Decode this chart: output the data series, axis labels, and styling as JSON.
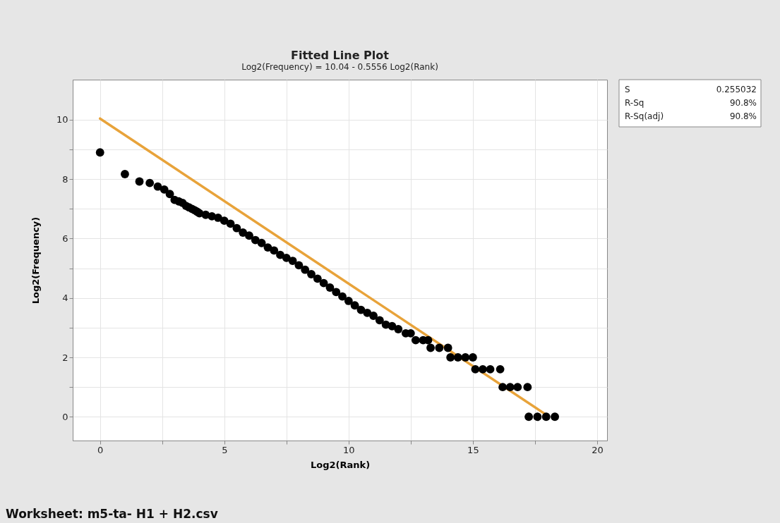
{
  "chart_data": {
    "type": "scatter",
    "title": "Fitted Line Plot",
    "subtitle": "Log2(Frequency) = 10.04 - 0.5556 Log2(Rank)",
    "xlabel": "Log2(Rank)",
    "ylabel": "Log2(Frequency)",
    "xlim": [
      -1.1,
      20.4
    ],
    "ylim": [
      -0.8,
      11.35
    ],
    "xticks": [
      0,
      {
        "value": 2.5,
        "label": null
      },
      5,
      {
        "value": 7.5,
        "label": null
      },
      10,
      {
        "value": 12.5,
        "label": null
      },
      15,
      {
        "value": 17.5,
        "label": null
      },
      20
    ],
    "yticks": [
      0,
      {
        "value": 1,
        "label": null
      },
      2,
      {
        "value": 3,
        "label": null
      },
      4,
      {
        "value": 5,
        "label": null
      },
      6,
      {
        "value": 7,
        "label": null
      },
      8,
      {
        "value": 9,
        "label": null
      },
      10
    ],
    "grid": true,
    "marker": "circle",
    "series": [
      {
        "color": "#000000",
        "x": [
          0,
          1,
          1.585,
          2,
          2.322,
          2.585,
          2.807,
          3,
          3.17,
          3.32,
          3.46,
          3.58,
          3.7,
          3.81,
          3.91,
          4,
          4.25,
          4.5,
          4.75,
          5,
          5.25,
          5.5,
          5.75,
          6,
          6.25,
          6.5,
          6.75,
          7,
          7.25,
          7.5,
          7.75,
          8,
          8.25,
          8.5,
          8.75,
          9,
          9.25,
          9.5,
          9.75,
          10,
          10.25,
          10.5,
          10.75,
          11,
          11.25,
          11.5,
          11.75,
          12,
          12.3,
          12.5,
          12.7,
          13,
          13.2,
          13.3,
          13.65,
          14,
          14.1,
          14.4,
          14.7,
          15,
          15.1,
          15.4,
          15.7,
          16.1,
          16.2,
          16.5,
          16.8,
          17.2,
          17.25,
          17.6,
          17.95,
          18.3
        ],
        "values": [
          8.9,
          8.17,
          7.92,
          7.87,
          7.75,
          7.65,
          7.5,
          7.3,
          7.25,
          7.2,
          7.1,
          7.05,
          7.0,
          6.95,
          6.9,
          6.85,
          6.8,
          6.75,
          6.7,
          6.6,
          6.5,
          6.35,
          6.2,
          6.1,
          5.95,
          5.85,
          5.7,
          5.6,
          5.45,
          5.35,
          5.25,
          5.1,
          4.95,
          4.8,
          4.65,
          4.5,
          4.35,
          4.2,
          4.05,
          3.9,
          3.75,
          3.6,
          3.5,
          3.4,
          3.25,
          3.1,
          3.05,
          2.95,
          2.81,
          2.81,
          2.58,
          2.58,
          2.58,
          2.32,
          2.32,
          2.32,
          2.0,
          2.0,
          2.0,
          2.0,
          1.6,
          1.6,
          1.6,
          1.6,
          1.0,
          1.0,
          1.0,
          1.0,
          0,
          0,
          0,
          0
        ]
      },
      {
        "type": "line",
        "color": "#e8a33a",
        "line_style": "solid",
        "marker": "none",
        "x": [
          0,
          18
        ],
        "values": [
          10.04,
          0.04
        ]
      }
    ],
    "annotations": [
      "S",
      "0.255032",
      "R-Sq",
      "90.8%",
      "R-Sq(adj)",
      "90.8%",
      "Worksheet: m5-ta- H1 + H2.csv"
    ]
  }
}
